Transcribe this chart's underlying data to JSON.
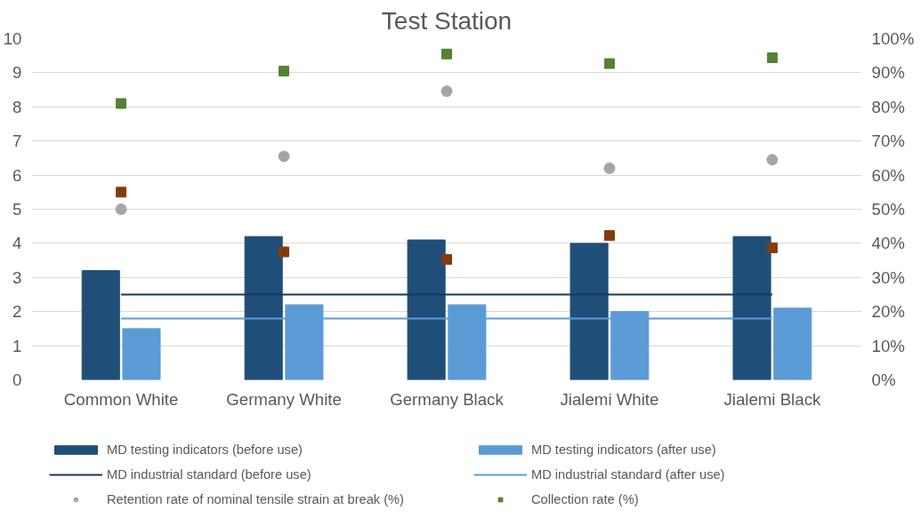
{
  "chart_data": {
    "type": "bar",
    "title": "Test Station",
    "categories": [
      "Common White",
      "Germany White",
      "Germany Black",
      "Jialemi White",
      "Jialemi Black"
    ],
    "series": [
      {
        "name": "MD testing indicators (before use)",
        "color": "#1f4e79",
        "values": [
          3.2,
          4.2,
          4.1,
          4.0,
          4.2
        ]
      },
      {
        "name": "MD testing indicators (after use)",
        "color": "#5b9bd5",
        "values": [
          1.5,
          2.2,
          2.2,
          2.0,
          2.1
        ]
      },
      {
        "name": "MD industrial standard (before use)",
        "type": "line",
        "color": "#17375e",
        "marker": "none",
        "values": [
          2.5,
          2.5,
          2.5,
          2.5,
          2.5
        ]
      },
      {
        "name": "MD industrial standard (after use)",
        "type": "line",
        "color": "#5b9bd5",
        "marker": "none",
        "values": [
          1.8,
          1.8,
          1.8,
          1.8,
          1.8
        ]
      },
      {
        "name": "Retention rate of nominal tensile strain at break (%)",
        "type": "scatter",
        "marker": "circle",
        "axis": "y2",
        "color": "#a5a5a5",
        "values": [
          50,
          65.5,
          84.6,
          62,
          64.5
        ]
      },
      {
        "name": "Collection rate (%)",
        "type": "scatter",
        "marker": "square",
        "axis": "y2",
        "color": "#548235",
        "values": [
          81,
          90.5,
          95.5,
          92.7,
          94.4
        ]
      },
      {
        "type": "scatter",
        "marker": "square",
        "axis": "y2",
        "color": "#843c0c",
        "values": [
          55,
          37.5,
          35.3,
          42.3,
          38.7
        ]
      }
    ],
    "ylim": [
      0,
      10
    ],
    "yticks": [
      0,
      1,
      2,
      3,
      4,
      5,
      6,
      7,
      8,
      9,
      10
    ],
    "y2lim": [
      0,
      100
    ],
    "y2ticks": [
      {
        "value": 0,
        "label": "0%"
      },
      {
        "value": 10,
        "label": "10%"
      },
      {
        "value": 20,
        "label": "20%"
      },
      {
        "value": 30,
        "label": "30%"
      },
      {
        "value": 40,
        "label": "40%"
      },
      {
        "value": 50,
        "label": "50%"
      },
      {
        "value": 60,
        "label": "60%"
      },
      {
        "value": 70,
        "label": "70%"
      },
      {
        "value": 80,
        "label": "80%"
      },
      {
        "value": 90,
        "label": "90%"
      },
      {
        "value": 100,
        "label": "100%"
      }
    ],
    "grid": "y",
    "legend": "bottom"
  }
}
